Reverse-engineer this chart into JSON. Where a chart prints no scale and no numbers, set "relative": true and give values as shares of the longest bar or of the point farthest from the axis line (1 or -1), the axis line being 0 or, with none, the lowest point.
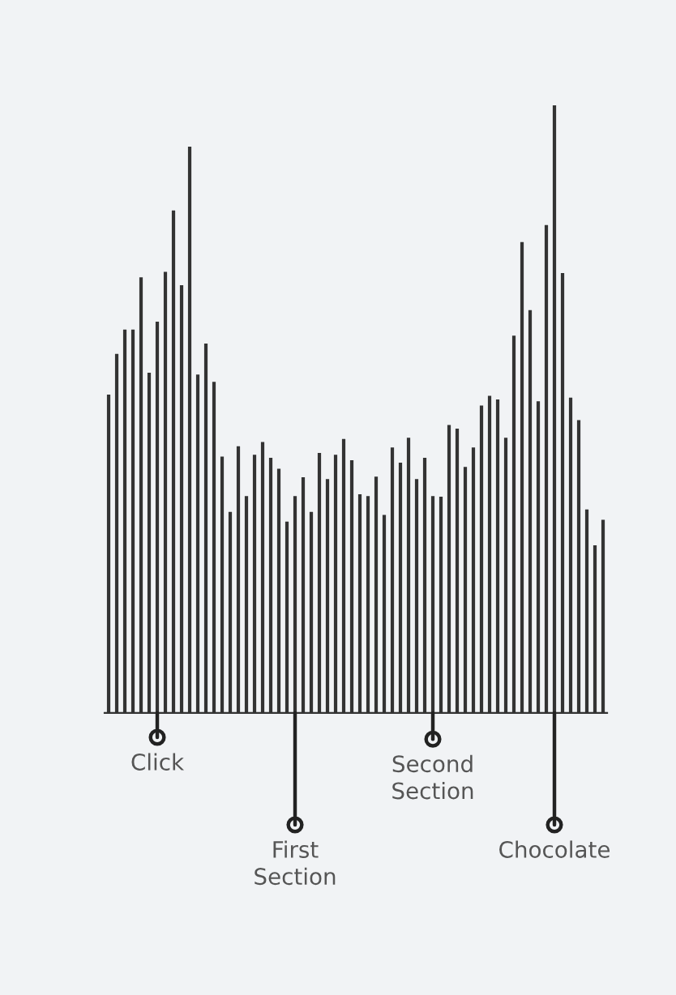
{
  "chart_data": {
    "type": "bar",
    "relative": true,
    "color": "#333333",
    "categories": [
      null,
      null,
      null,
      null,
      null,
      null,
      null,
      null,
      null,
      null,
      null,
      null,
      null,
      null,
      null,
      null,
      null,
      null,
      null,
      null,
      null,
      null,
      null,
      null,
      null,
      null,
      null,
      null,
      null,
      null,
      null,
      null,
      null,
      null,
      null,
      null,
      null,
      null,
      null,
      null,
      null,
      null,
      null,
      null,
      null,
      null,
      null,
      null,
      null,
      null,
      null,
      null,
      null,
      null,
      null,
      null,
      null,
      null,
      null,
      null,
      null,
      null
    ],
    "values": [
      0.524,
      0.591,
      0.631,
      0.631,
      0.717,
      0.56,
      0.644,
      0.726,
      0.827,
      0.704,
      0.932,
      0.557,
      0.608,
      0.545,
      0.422,
      0.331,
      0.439,
      0.357,
      0.425,
      0.446,
      0.42,
      0.402,
      0.315,
      0.357,
      0.388,
      0.331,
      0.428,
      0.385,
      0.425,
      0.451,
      0.416,
      0.36,
      0.357,
      0.389,
      0.326,
      0.437,
      0.412,
      0.453,
      0.385,
      0.42,
      0.357,
      0.356,
      0.474,
      0.468,
      0.405,
      0.437,
      0.506,
      0.522,
      0.516,
      0.453,
      0.621,
      0.775,
      0.663,
      0.513,
      0.803,
      1,
      0.724,
      0.519,
      0.482,
      0.335,
      0.276,
      0.318
    ],
    "annotations": [
      "Click",
      "First\nSection",
      "Second\nSection",
      "Chocolate"
    ]
  }
}
